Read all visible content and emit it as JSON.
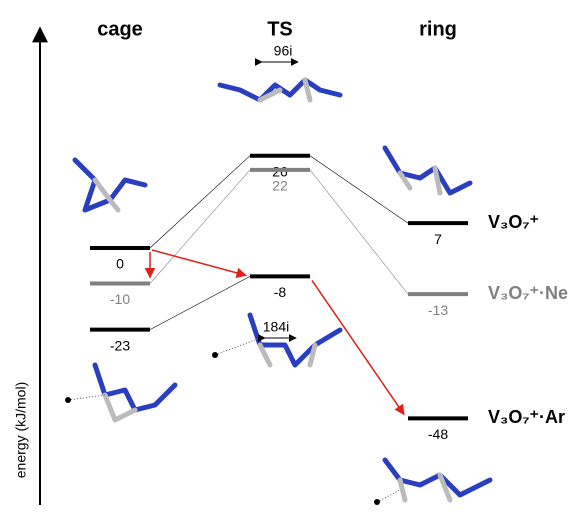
{
  "axis_label": "energy (kJ/mol)",
  "columns": [
    "cage",
    "TS",
    "ring"
  ],
  "levels": [
    {
      "value": 0,
      "color": "#000000"
    },
    {
      "value": -10,
      "color": "#808080"
    },
    {
      "value": -23,
      "color": "#000000"
    },
    {
      "value": 26,
      "color": "#000000"
    },
    {
      "value": 22,
      "color": "#808080"
    },
    {
      "value": -8,
      "color": "#000000"
    },
    {
      "value": 7,
      "color": "#000000"
    },
    {
      "value": -13,
      "color": "#808080"
    },
    {
      "value": -48,
      "color": "#000000"
    }
  ],
  "species": [
    "V₃O₇⁺",
    "V₃O₇⁺·Ne",
    "V₃O₇⁺·Ar"
  ],
  "frequencies": [
    "96i",
    "184i"
  ]
}
